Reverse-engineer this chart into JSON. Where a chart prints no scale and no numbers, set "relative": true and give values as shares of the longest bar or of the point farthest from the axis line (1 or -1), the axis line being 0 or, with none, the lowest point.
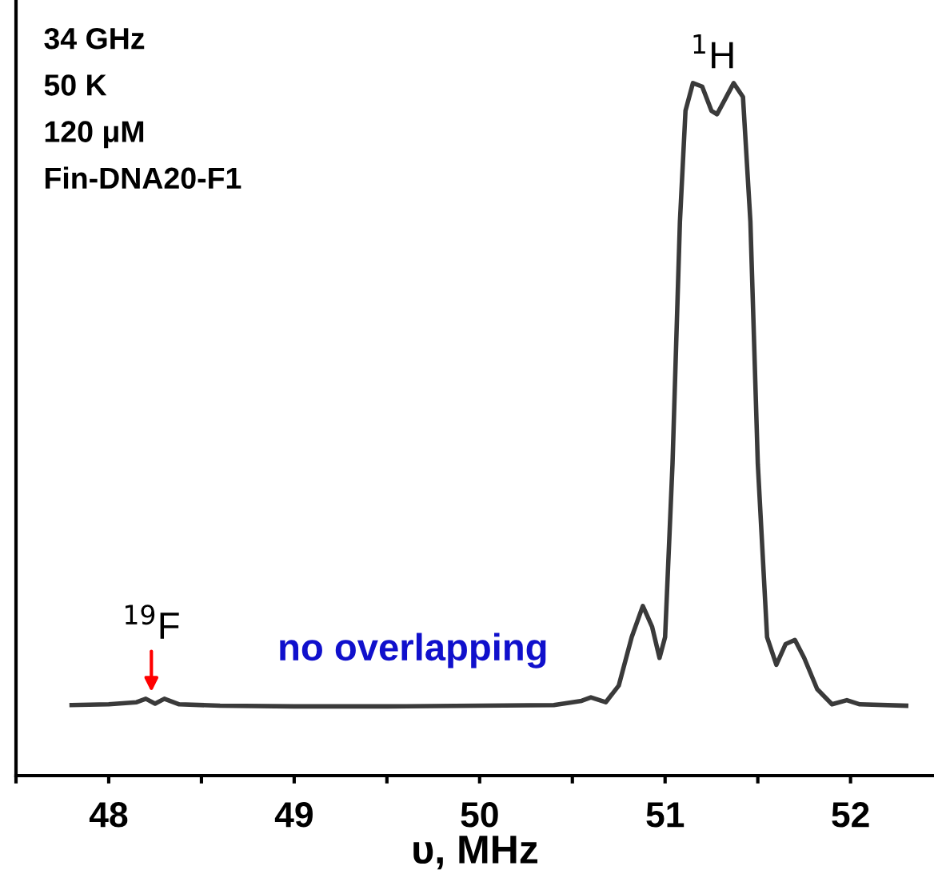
{
  "chart_data": {
    "type": "line",
    "relative": true,
    "xlabel": "υ, MHz",
    "xlim": [
      47.5,
      52.45
    ],
    "xticks": [
      {
        "value": 47.5,
        "label": null
      },
      48,
      {
        "value": 48.5,
        "label": null
      },
      49,
      {
        "value": 49.5,
        "label": null
      },
      50,
      {
        "value": 50.5,
        "label": null
      },
      51,
      {
        "value": 51.5,
        "label": null
      },
      52
    ],
    "tick_labels": "x",
    "grid": false,
    "marker": "none",
    "line_style": "solid",
    "series": [
      {
        "color": "#3a3a3a",
        "x": [
          47.8,
          48.0,
          48.15,
          48.2,
          48.25,
          48.3,
          48.38,
          48.6,
          49.0,
          49.5,
          50.0,
          50.4,
          50.55,
          50.6,
          50.68,
          50.75,
          50.82,
          50.88,
          50.93,
          50.97,
          51.0,
          51.04,
          51.08,
          51.11,
          51.15,
          51.2,
          51.25,
          51.28,
          51.32,
          51.37,
          51.42,
          51.46,
          51.5,
          51.55,
          51.6,
          51.65,
          51.7,
          51.75,
          51.82,
          51.9,
          51.98,
          52.05,
          52.3
        ],
        "values": [
          0.102,
          0.103,
          0.106,
          0.111,
          0.104,
          0.111,
          0.103,
          0.101,
          0.1,
          0.1,
          0.101,
          0.102,
          0.108,
          0.113,
          0.106,
          0.13,
          0.2,
          0.245,
          0.215,
          0.17,
          0.2,
          0.45,
          0.8,
          0.96,
          1.0,
          0.995,
          0.96,
          0.955,
          0.975,
          1.0,
          0.98,
          0.8,
          0.45,
          0.2,
          0.16,
          0.19,
          0.196,
          0.17,
          0.125,
          0.103,
          0.109,
          0.103,
          0.101
        ]
      }
    ],
    "annotations": [
      "34 GHz",
      "50 K",
      "120 μM",
      "Fin-DNA20-F1",
      "$^{1}$H",
      {
        "text": "$^{19}$F",
        "x": 48.23,
        "y": 0.111
      },
      "no overlapping"
    ]
  }
}
